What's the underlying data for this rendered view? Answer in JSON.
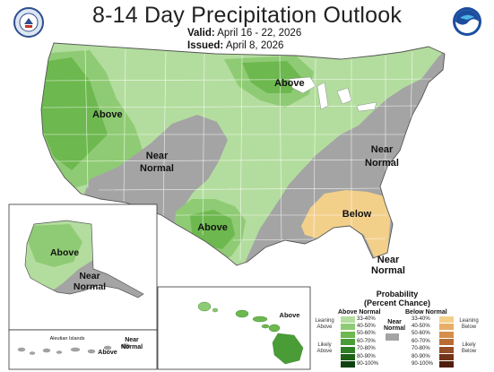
{
  "header": {
    "title": "8-14 Day Precipitation Outlook",
    "valid_label": "Valid:",
    "valid_value": "April 16 - 22, 2026",
    "issued_label": "Issued:",
    "issued_value": "April 8, 2026"
  },
  "logos": {
    "left": "commerce-department-seal",
    "right": "noaa-logo"
  },
  "map_labels": {
    "above_west": "Above",
    "above_north": "Above",
    "near_normal_sw_1": "Near",
    "near_normal_sw_2": "Normal",
    "near_normal_ne_1": "Near",
    "near_normal_ne_2": "Normal",
    "above_texas": "Above",
    "below_se": "Below",
    "near_normal_fl_1": "Near",
    "near_normal_fl_2": "Normal",
    "alaska_above": "Above",
    "alaska_near_1": "Near",
    "alaska_near_2": "Normal",
    "aleutian": "Aleutian Islands",
    "aleutian_above": "Above",
    "aleutian_near_1": "Near",
    "aleutian_near_2": "Normal",
    "hawaii_above": "Above"
  },
  "legend": {
    "title_1": "Probability",
    "title_2": "(Percent Chance)",
    "above_head": "Above Normal",
    "below_head": "Below Normal",
    "near_head_1": "Near",
    "near_head_2": "Normal",
    "leaning_above": "Leaning Above",
    "likely_above": "Likely Above",
    "leaning_below": "Leaning Below",
    "likely_below": "Likely Below",
    "above_ranges": [
      "33-40%",
      "40-50%",
      "50-60%",
      "60-70%",
      "70-80%",
      "80-90%",
      "90-100%"
    ],
    "below_ranges": [
      "33-40%",
      "40-50%",
      "50-60%",
      "60-70%",
      "70-80%",
      "80-90%",
      "90-100%"
    ],
    "above_colors": [
      "#b3dd9e",
      "#8fcb74",
      "#6db84f",
      "#4a9c37",
      "#2f7e24",
      "#1d6016",
      "#0f4210"
    ],
    "below_colors": [
      "#f3d08a",
      "#e8ae68",
      "#d68e4b",
      "#b96b34",
      "#974d25",
      "#723319",
      "#4f1f10"
    ],
    "near_color": "#a4a4a4"
  }
}
